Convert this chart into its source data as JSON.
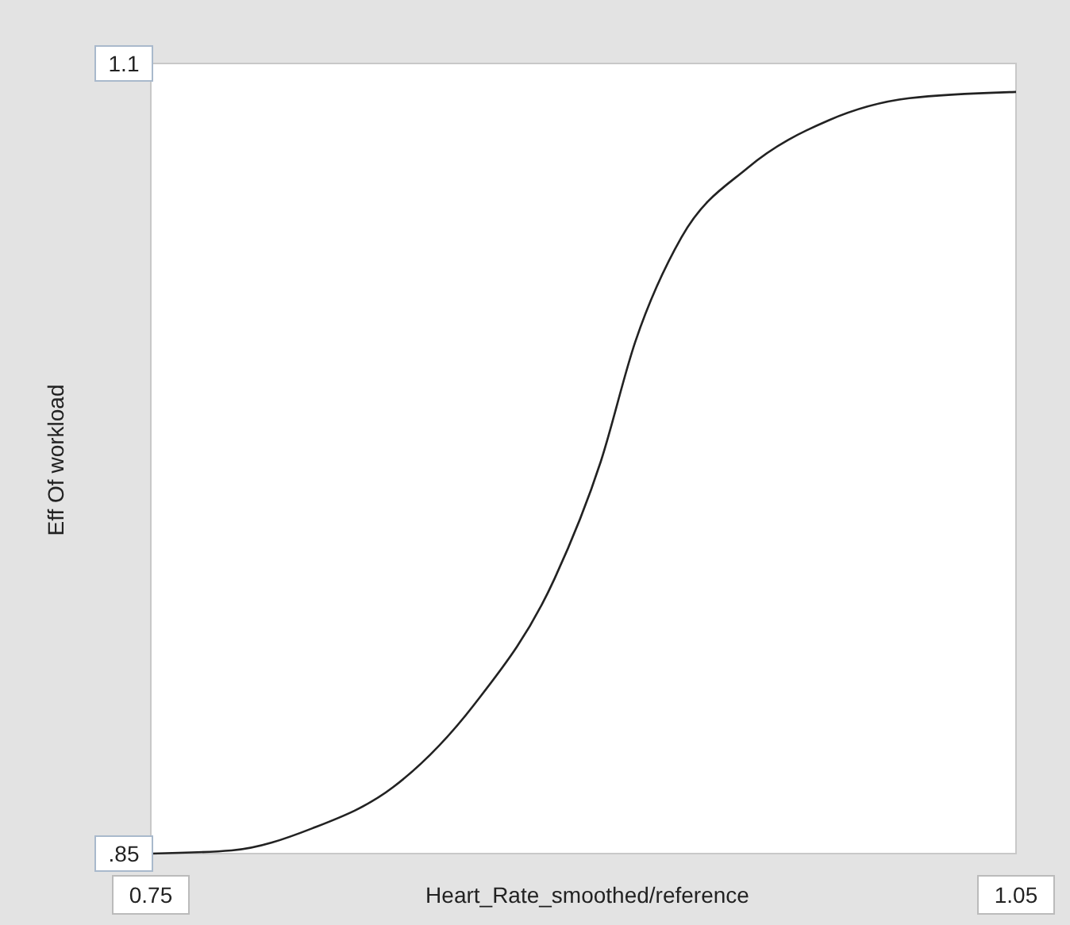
{
  "chart_data": {
    "type": "line",
    "xlabel": "Heart_Rate_smoothed/reference",
    "ylabel": "Eff Of workload",
    "x": [
      0.75,
      0.778,
      0.806,
      0.834,
      0.862,
      0.89,
      0.906,
      0.918,
      0.934,
      0.957,
      0.985,
      1.013,
      1.05
    ],
    "series": [
      {
        "color": "#222222",
        "values": [
          0.85,
          0.851,
          0.858,
          0.871,
          0.897,
          0.937,
          0.974,
          1.012,
          1.045,
          1.067,
          1.082,
          1.089,
          1.091
        ]
      }
    ],
    "xlim": [
      0.75,
      1.05
    ],
    "ylim": [
      0.85,
      1.1
    ],
    "xticks": [
      0.75,
      1.05
    ],
    "yticks": [
      {
        "value": 0.85,
        "label": ".85"
      },
      1.1
    ],
    "marker": "none",
    "line_style": "solid"
  }
}
